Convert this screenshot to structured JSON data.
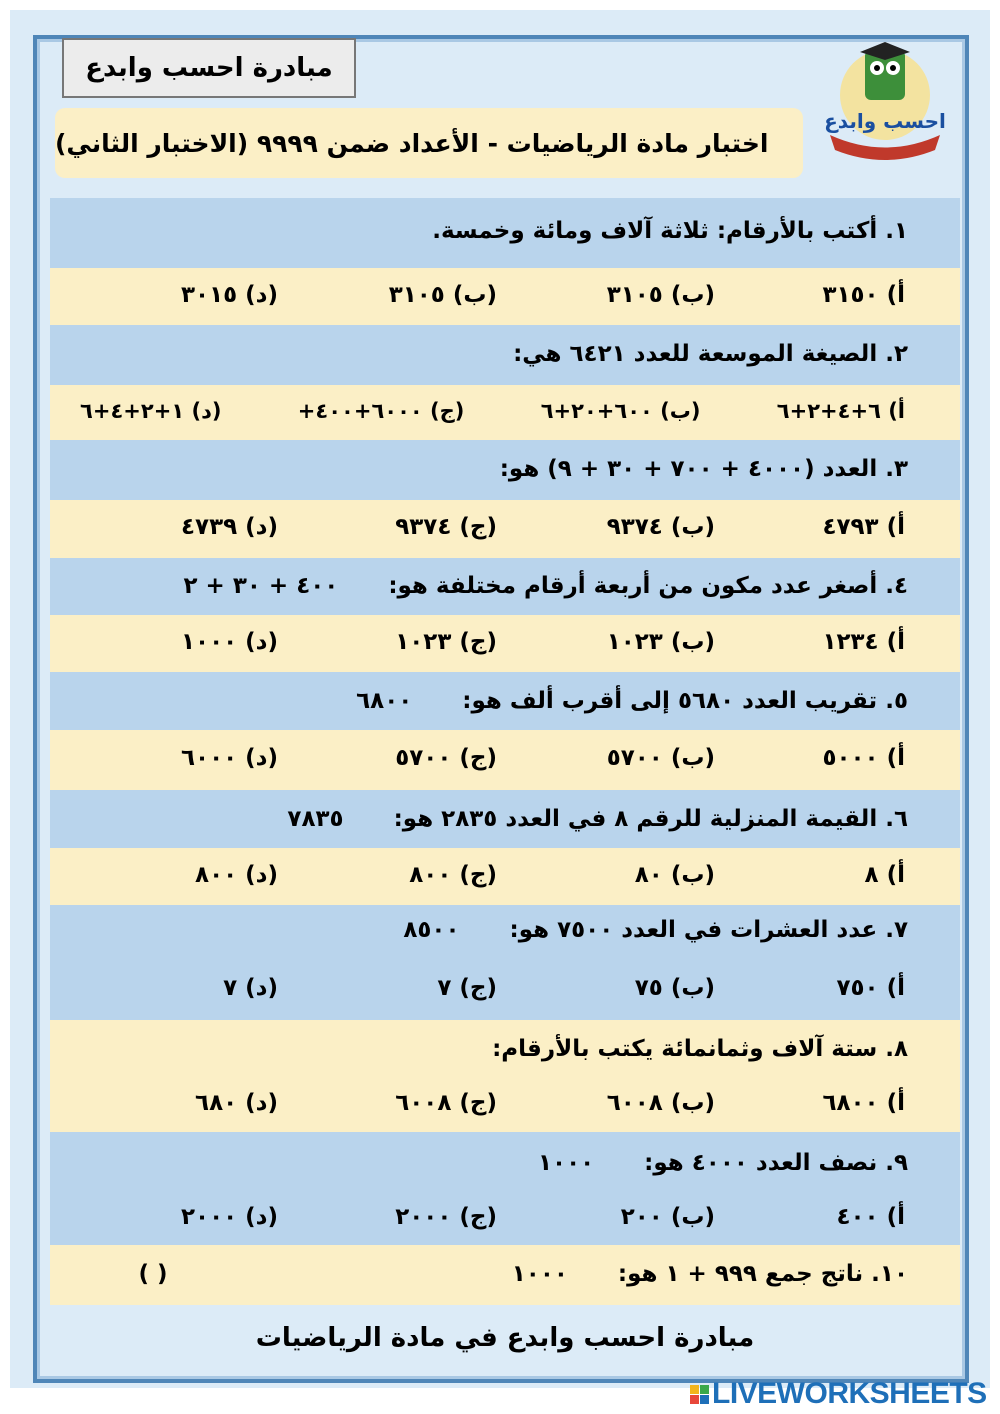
{
  "header": {
    "title": "مبادرة احسب وابدع",
    "subtitle": "اختبار مادة الرياضيات - الأعداد ضمن ٩٩٩٩ (الاختبار الثاني)",
    "logo_text": "احسب وابدع"
  },
  "questions": [
    {
      "text": "١. أكتب بالأرقام: ثلاثة آلاف ومائة وخمسة.",
      "extra": "",
      "options": [
        "أ) ٣١٥٠",
        "(ب) ٣١٠٥",
        "(ب) ٣١٠٥",
        "(د) ٣٠١٥"
      ]
    },
    {
      "text": "٢. الصيغة الموسعة للعدد ٦٤٢١ هي:",
      "extra": "",
      "options": [
        "أ) ٦+٤+٢+٦",
        "(ب) ٦٠٠+٢٠+٦",
        "(ج) ٦٠٠٠+٤٠٠+",
        "(د) ١+٢+٤+٦"
      ]
    },
    {
      "text": "٣. العدد (٤٠٠٠ + ٧٠٠ + ٣٠ + ٩) هو:",
      "extra": "",
      "options": [
        "أ) ٤٧٩٣",
        "(ب) ٩٣٧٤",
        "(ج) ٩٣٧٤",
        "(د) ٤٧٣٩"
      ]
    },
    {
      "text": "٤. أصغر عدد مكون من أربعة أرقام مختلفة هو:",
      "extra": "٤٠٠ + ٣٠ + ٢",
      "options": [
        "أ) ١٢٣٤",
        "(ب) ١٠٢٣",
        "(ج) ١٠٢٣",
        "(د) ١٠٠٠"
      ]
    },
    {
      "text": "٥. تقريب العدد ٥٦٨٠ إلى أقرب ألف هو:",
      "extra": "٦٨٠٠",
      "options": [
        "أ) ٥٠٠٠",
        "(ب) ٥٧٠٠",
        "(ج) ٥٧٠٠",
        "(د) ٦٠٠٠"
      ]
    },
    {
      "text": "٦. القيمة المنزلية للرقم ٨ في العدد ٢٨٣٥ هو:",
      "extra": "٧٨٣٥",
      "options": [
        "أ) ٨",
        "(ب) ٨٠",
        "(ج) ٨٠٠",
        "(د) ٨٠٠"
      ]
    },
    {
      "text": "٧. عدد العشرات في العدد ٧٥٠٠ هو:",
      "extra": "٨٥٠٠",
      "options": [
        "أ) ٧٥٠",
        "(ب) ٧٥",
        "(ج) ٧",
        "(د) ٧"
      ]
    },
    {
      "text": "٨. ستة آلاف وثمانمائة يكتب بالأرقام:",
      "extra": "",
      "options": [
        "أ) ٦٨٠٠",
        "(ب) ٦٠٠٨",
        "(ج) ٦٠٠٨",
        "(د) ٦٨٠"
      ]
    },
    {
      "text": "٩. نصف العدد ٤٠٠٠ هو:",
      "extra": "١٠٠٠",
      "options": [
        "أ) ٤٠٠",
        "(ب) ٢٠٠",
        "(ج) ٢٠٠٠",
        "(د) ٢٠٠٠"
      ]
    },
    {
      "text": "١٠. ناتج جمع ٩٩٩ + ١ هو:",
      "extra": "١٠٠٠",
      "answer_blank": "(          )"
    }
  ],
  "footer": "مبادرة احسب وابدع في مادة الرياضيات",
  "brand": "LIVEWORKSHEETS",
  "colors": {
    "blue_row": "#b9d4ec",
    "yellow_row": "#fbefc6",
    "frame": "#4f86b8",
    "brand": "#1e6fb8"
  }
}
